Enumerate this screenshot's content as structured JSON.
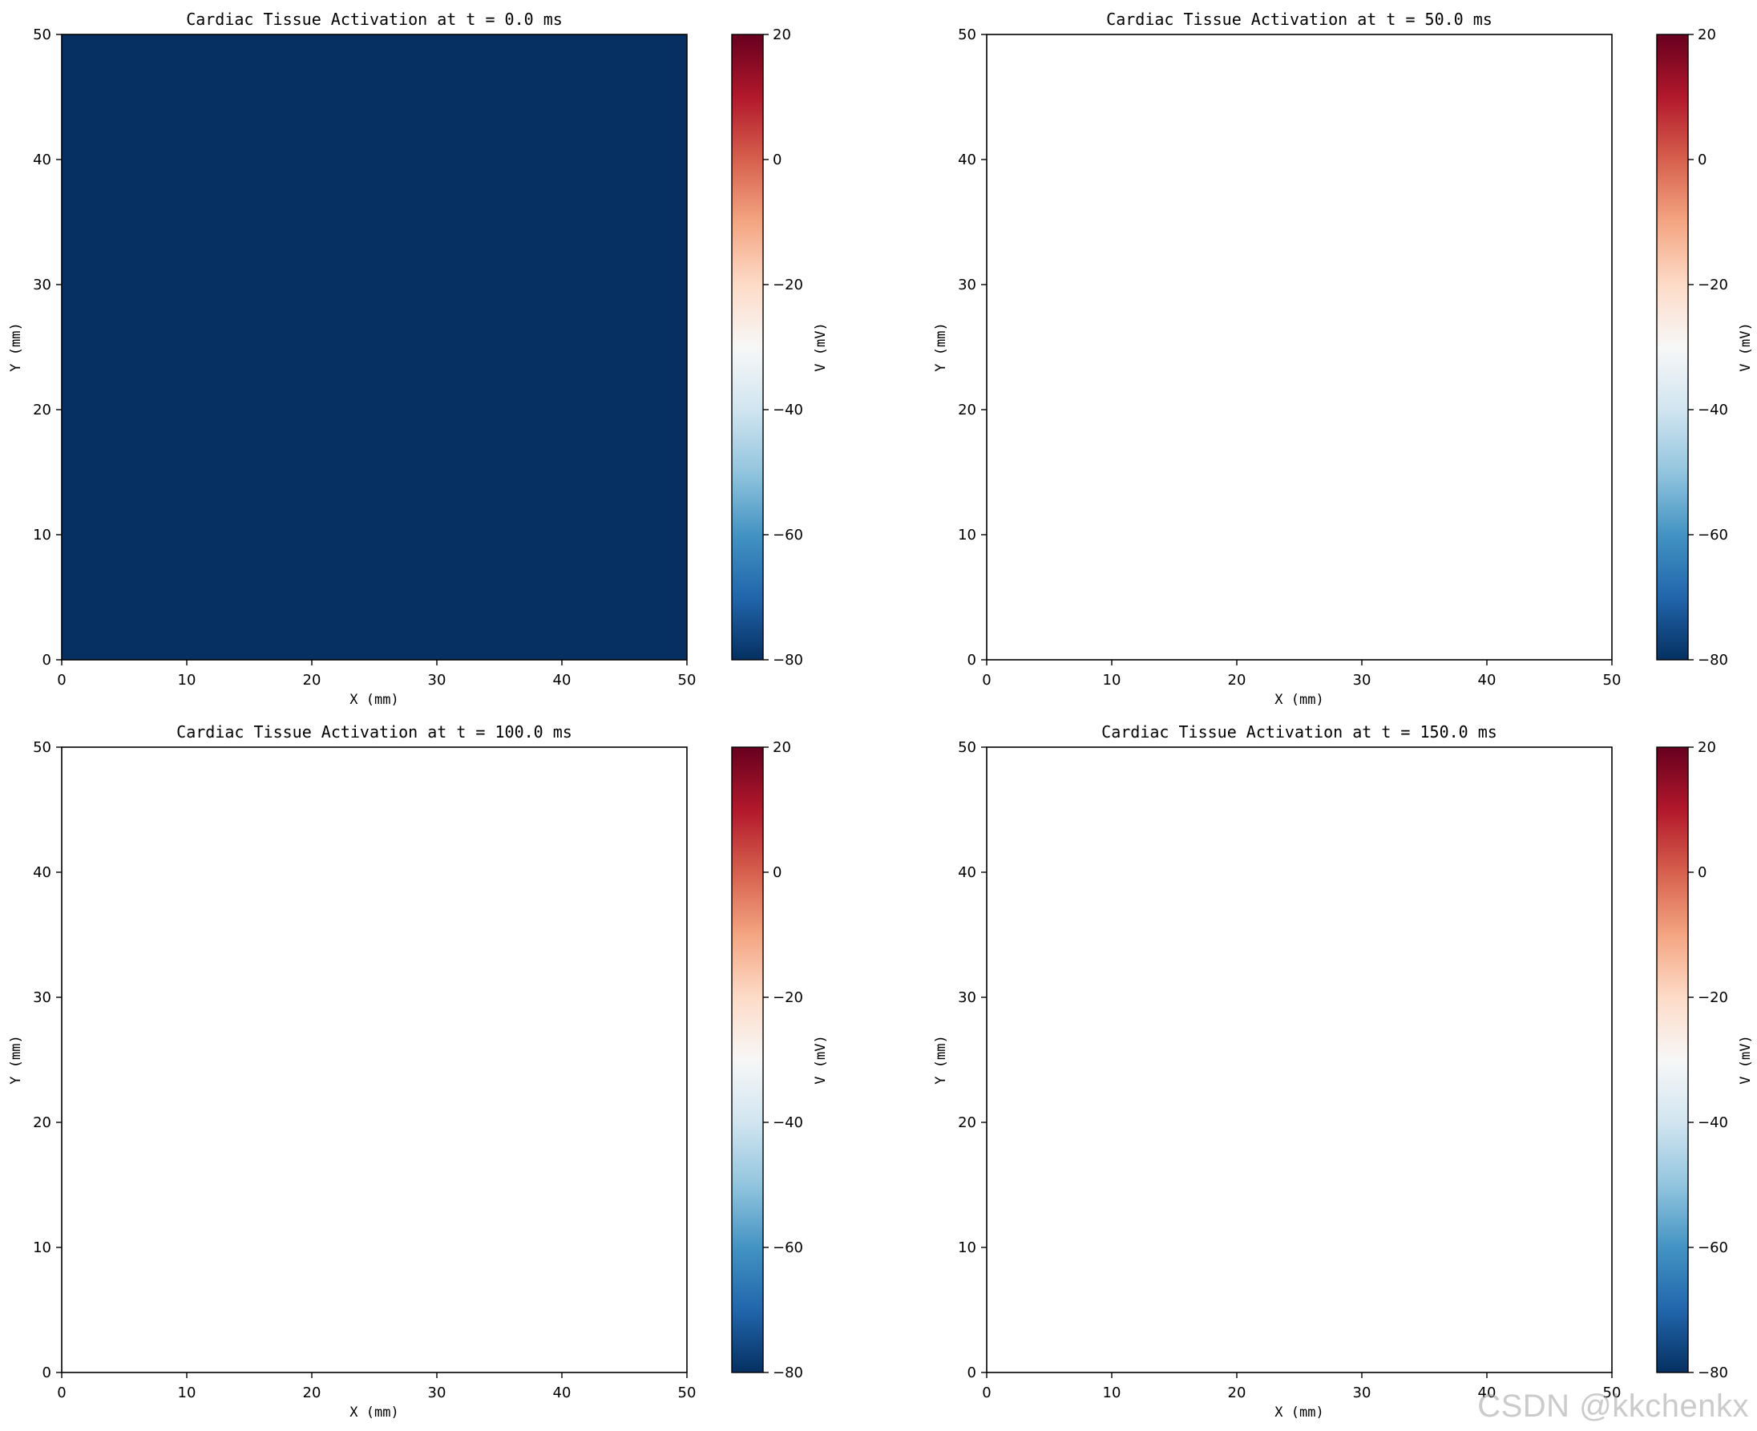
{
  "colors": {
    "rdbu_stops": [
      "#053061",
      "#2166ac",
      "#4393c3",
      "#92c5de",
      "#d1e5f0",
      "#f7f7f7",
      "#fddbc7",
      "#f4a582",
      "#d6604d",
      "#b2182b",
      "#67001f"
    ]
  },
  "watermark": "CSDN @kkchenkx",
  "chart_data": [
    {
      "type": "heatmap",
      "title": "Cardiac Tissue Activation at t = 0.0 ms",
      "xlabel": "X (mm)",
      "ylabel": "Y (mm)",
      "xlim": [
        0,
        50
      ],
      "ylim": [
        0,
        50
      ],
      "xticks": [
        0,
        10,
        20,
        30,
        40,
        50
      ],
      "yticks": [
        0,
        10,
        20,
        30,
        40,
        50
      ],
      "field_value_mV": -80,
      "field_visible": true,
      "colorbar": {
        "label": "V (mV)",
        "vmin": -80,
        "vmax": 20,
        "ticks": [
          -80,
          -60,
          -40,
          -20,
          0,
          20
        ]
      }
    },
    {
      "type": "heatmap",
      "title": "Cardiac Tissue Activation at t = 50.0 ms",
      "xlabel": "X (mm)",
      "ylabel": "Y (mm)",
      "xlim": [
        0,
        50
      ],
      "ylim": [
        0,
        50
      ],
      "xticks": [
        0,
        10,
        20,
        30,
        40,
        50
      ],
      "yticks": [
        0,
        10,
        20,
        30,
        40,
        50
      ],
      "field_value_mV": null,
      "field_visible": false,
      "colorbar": {
        "label": "V (mV)",
        "vmin": -80,
        "vmax": 20,
        "ticks": [
          -80,
          -60,
          -40,
          -20,
          0,
          20
        ]
      }
    },
    {
      "type": "heatmap",
      "title": "Cardiac Tissue Activation at t = 100.0 ms",
      "xlabel": "X (mm)",
      "ylabel": "Y (mm)",
      "xlim": [
        0,
        50
      ],
      "ylim": [
        0,
        50
      ],
      "xticks": [
        0,
        10,
        20,
        30,
        40,
        50
      ],
      "yticks": [
        0,
        10,
        20,
        30,
        40,
        50
      ],
      "field_value_mV": null,
      "field_visible": false,
      "colorbar": {
        "label": "V (mV)",
        "vmin": -80,
        "vmax": 20,
        "ticks": [
          -80,
          -60,
          -40,
          -20,
          0,
          20
        ]
      }
    },
    {
      "type": "heatmap",
      "title": "Cardiac Tissue Activation at t = 150.0 ms",
      "xlabel": "X (mm)",
      "ylabel": "Y (mm)",
      "xlim": [
        0,
        50
      ],
      "ylim": [
        0,
        50
      ],
      "xticks": [
        0,
        10,
        20,
        30,
        40,
        50
      ],
      "yticks": [
        0,
        10,
        20,
        30,
        40,
        50
      ],
      "field_value_mV": null,
      "field_visible": false,
      "colorbar": {
        "label": "V (mV)",
        "vmin": -80,
        "vmax": 20,
        "ticks": [
          -80,
          -60,
          -40,
          -20,
          0,
          20
        ]
      }
    }
  ]
}
